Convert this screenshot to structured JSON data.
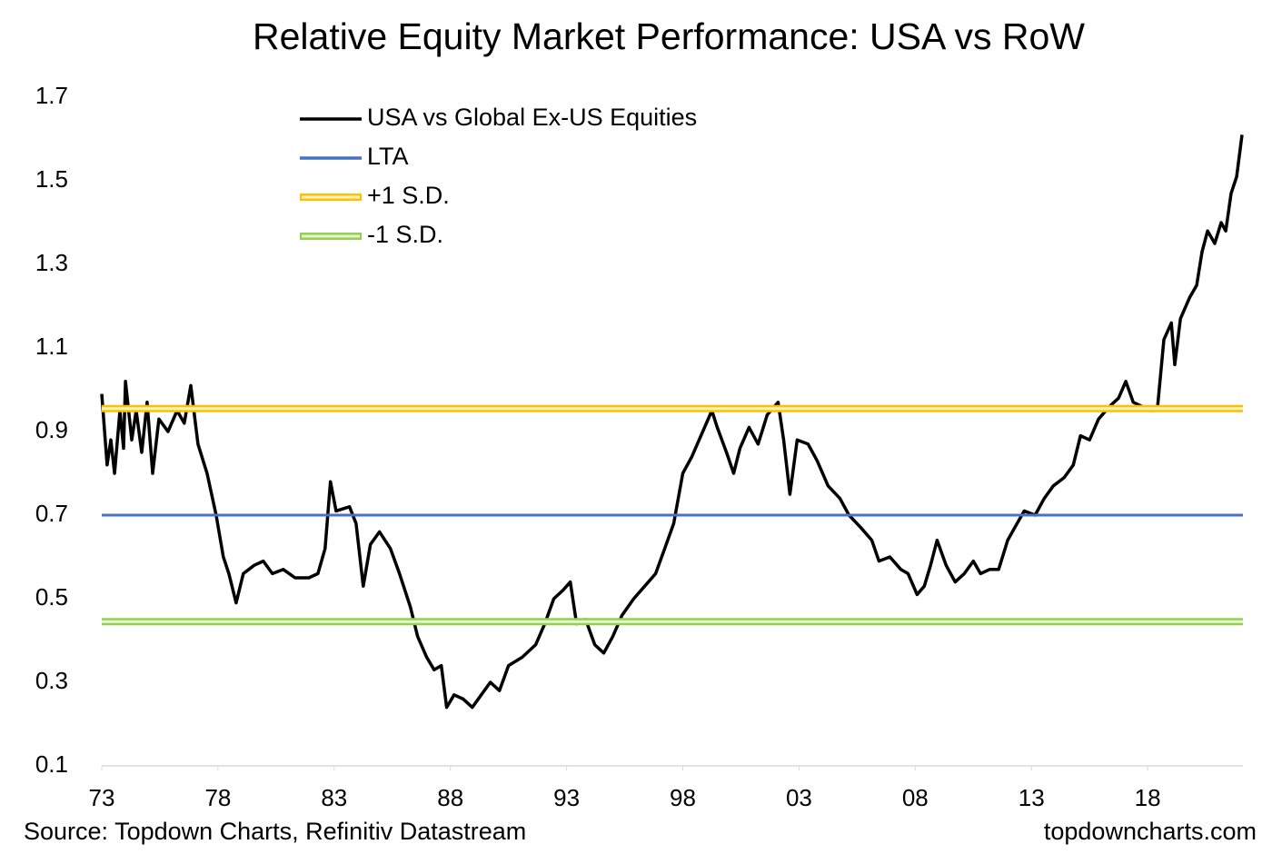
{
  "chart_data": {
    "type": "line",
    "title": "Relative Equity Market Performance: USA vs RoW",
    "source": "Source: Topdown Charts, Refinitiv Datastream",
    "watermark": "topdowncharts.com",
    "xlim": [
      1973,
      2022.1
    ],
    "xticks": [
      {
        "value": 1973,
        "label": "73"
      },
      {
        "value": 1978,
        "label": "78"
      },
      {
        "value": 1983,
        "label": "83"
      },
      {
        "value": 1988,
        "label": "88"
      },
      {
        "value": 1993,
        "label": "93"
      },
      {
        "value": 1998,
        "label": "98"
      },
      {
        "value": 2003,
        "label": "03"
      },
      {
        "value": 2008,
        "label": "08"
      },
      {
        "value": 2013,
        "label": "13"
      },
      {
        "value": 2018,
        "label": "18"
      }
    ],
    "ylim": [
      0.1,
      1.7
    ],
    "yticks": [
      0.1,
      0.3,
      0.5,
      0.7,
      0.9,
      1.1,
      1.3,
      1.5,
      1.7
    ],
    "grid": false,
    "legend": "top-left",
    "x": [
      1973.0,
      1973.23,
      1973.39,
      1973.55,
      1973.78,
      1973.94,
      1974.02,
      1974.29,
      1974.48,
      1974.72,
      1974.95,
      1975.19,
      1975.46,
      1975.85,
      1976.24,
      1976.55,
      1976.83,
      1977.14,
      1977.53,
      1977.92,
      1978.23,
      1978.47,
      1978.78,
      1979.09,
      1979.56,
      1979.95,
      1980.34,
      1980.81,
      1981.32,
      1981.91,
      1982.3,
      1982.61,
      1982.84,
      1983.08,
      1983.66,
      1983.94,
      1984.25,
      1984.56,
      1984.95,
      1985.42,
      1985.81,
      1986.28,
      1986.59,
      1986.98,
      1987.3,
      1987.61,
      1987.84,
      1988.16,
      1988.55,
      1988.94,
      1989.33,
      1989.72,
      1990.11,
      1990.5,
      1991.09,
      1991.67,
      1992.06,
      1992.45,
      1992.84,
      1993.16,
      1993.43,
      1993.82,
      1994.21,
      1994.6,
      1994.99,
      1995.38,
      1995.89,
      1996.36,
      1996.83,
      1997.22,
      1997.61,
      1998.0,
      1998.39,
      1998.78,
      1999.25,
      1999.48,
      1999.88,
      2000.19,
      2000.46,
      2000.85,
      2001.24,
      2001.63,
      2002.1,
      2002.34,
      2002.61,
      2002.92,
      2003.39,
      2003.78,
      2004.25,
      2004.76,
      2005.15,
      2005.66,
      2006.13,
      2006.44,
      2006.91,
      2007.38,
      2007.69,
      2008.08,
      2008.39,
      2008.66,
      2008.94,
      2009.33,
      2009.72,
      2010.11,
      2010.5,
      2010.81,
      2011.2,
      2011.59,
      2011.98,
      2012.38,
      2012.69,
      2013.16,
      2013.55,
      2013.94,
      2014.41,
      2014.8,
      2015.11,
      2015.5,
      2015.89,
      2016.36,
      2016.75,
      2017.06,
      2017.38,
      2017.77,
      2018.16,
      2018.43,
      2018.7,
      2019.02,
      2019.17,
      2019.41,
      2019.8,
      2020.11,
      2020.34,
      2020.58,
      2020.89,
      2021.16,
      2021.36,
      2021.59,
      2021.83,
      2022.06
    ],
    "series": [
      {
        "name": "USA vs Global Ex-US Equities",
        "color": "#000000",
        "values": [
          0.99,
          0.82,
          0.88,
          0.8,
          0.95,
          0.86,
          1.02,
          0.88,
          0.95,
          0.85,
          0.97,
          0.8,
          0.93,
          0.9,
          0.95,
          0.92,
          1.01,
          0.87,
          0.8,
          0.7,
          0.6,
          0.56,
          0.49,
          0.56,
          0.58,
          0.59,
          0.56,
          0.57,
          0.55,
          0.55,
          0.56,
          0.62,
          0.78,
          0.71,
          0.72,
          0.68,
          0.53,
          0.63,
          0.66,
          0.62,
          0.56,
          0.48,
          0.41,
          0.36,
          0.33,
          0.34,
          0.24,
          0.27,
          0.26,
          0.24,
          0.27,
          0.3,
          0.28,
          0.34,
          0.36,
          0.39,
          0.44,
          0.5,
          0.52,
          0.54,
          0.44,
          0.45,
          0.39,
          0.37,
          0.41,
          0.46,
          0.5,
          0.53,
          0.56,
          0.62,
          0.68,
          0.8,
          0.84,
          0.89,
          0.95,
          0.91,
          0.85,
          0.8,
          0.86,
          0.91,
          0.87,
          0.94,
          0.97,
          0.88,
          0.75,
          0.88,
          0.87,
          0.83,
          0.77,
          0.74,
          0.7,
          0.67,
          0.64,
          0.59,
          0.6,
          0.57,
          0.56,
          0.51,
          0.53,
          0.58,
          0.64,
          0.58,
          0.54,
          0.56,
          0.59,
          0.56,
          0.57,
          0.57,
          0.64,
          0.68,
          0.71,
          0.7,
          0.74,
          0.77,
          0.79,
          0.82,
          0.89,
          0.88,
          0.93,
          0.96,
          0.98,
          1.02,
          0.97,
          0.96,
          0.95,
          0.96,
          1.12,
          1.16,
          1.06,
          1.17,
          1.22,
          1.25,
          1.33,
          1.38,
          1.35,
          1.4,
          1.38,
          1.47,
          1.51,
          1.61
        ]
      },
      {
        "name": "LTA",
        "color": "#4472c4",
        "value": 0.7
      },
      {
        "name": "+1 S.D.",
        "color": "#ffc000",
        "value": 0.955
      },
      {
        "name": "-1 S.D.",
        "color": "#92d050",
        "value": 0.445
      }
    ]
  }
}
